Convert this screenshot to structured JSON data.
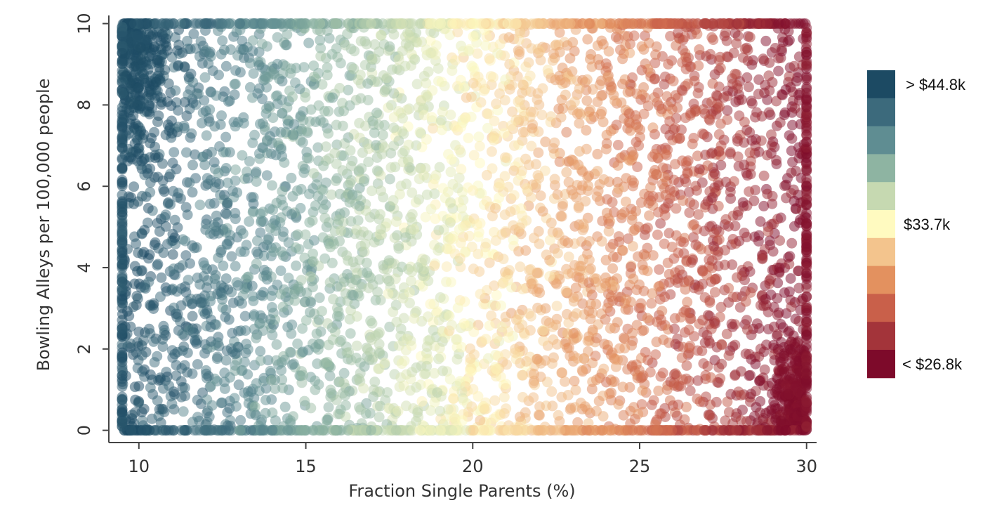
{
  "chart_data": {
    "type": "scatter",
    "xlabel": "Fraction Single Parents (%)",
    "ylabel": "Bowling Alleys per 100,000 people",
    "xlim": [
      9.1,
      30.3
    ],
    "ylim": [
      -0.3,
      10.2
    ],
    "xticks": [
      10,
      15,
      20,
      25,
      30
    ],
    "yticks": [
      0,
      2,
      4,
      6,
      8,
      10
    ],
    "grid": false,
    "point_opacity": 0.5,
    "points_summary": "Several thousand semi-transparent dots fill the region x 9.5–30, y 0–10 roughly uniformly; color tracks the median-income bin and shifts from dark blue-teal at the low-x end (high income) through pale yellow near x≈20 to dark red at the high-x end (low income). Dense clusters: darkest blue near x 9.5–12, y 6–10; darkest red near x 28.5–30, y 0–3. Points pile up along the edges y=0, y=10, x≈9.5 and x=30.",
    "legend": {
      "title": "",
      "placement": "right",
      "bins": [
        {
          "color": "#1c4a63",
          "label": "> $44.8k"
        },
        {
          "color": "#3c6a7c",
          "label": ""
        },
        {
          "color": "#5f8d92",
          "label": ""
        },
        {
          "color": "#8eb4a2",
          "label": ""
        },
        {
          "color": "#c6d9b1",
          "label": ""
        },
        {
          "color": "#fffac0",
          "label": "$33.7k"
        },
        {
          "color": "#f3c48d",
          "label": ""
        },
        {
          "color": "#e3915f",
          "label": ""
        },
        {
          "color": "#c9604a",
          "label": ""
        },
        {
          "color": "#a3343a",
          "label": ""
        },
        {
          "color": "#7d0a2a",
          "label": "< $26.8k"
        }
      ]
    }
  }
}
